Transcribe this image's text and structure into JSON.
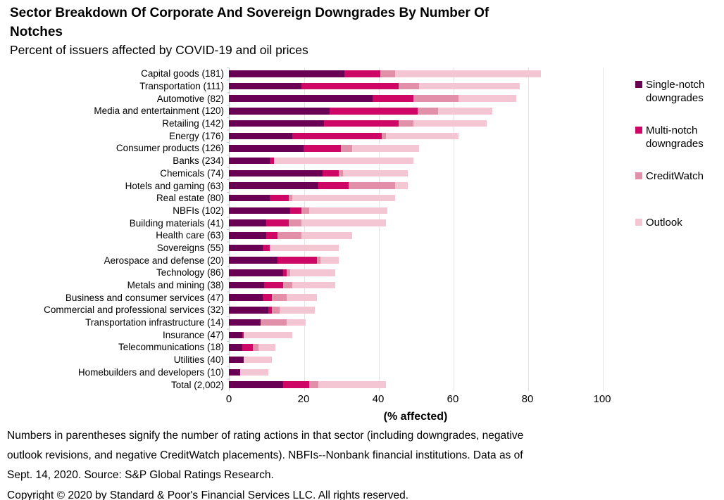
{
  "header": {
    "title_line1": "Sector Breakdown Of Corporate And Sovereign Downgrades By Number Of",
    "title_line2": "Notches",
    "subtitle": "Percent of issuers affected by COVID-19 and oil prices"
  },
  "chart_data": {
    "type": "bar",
    "orientation": "horizontal",
    "stacked": true,
    "grid": true,
    "legend_position": "right",
    "xlabel": "(% affected)",
    "xlim": [
      0,
      100
    ],
    "xticks": [
      0,
      20,
      40,
      60,
      80,
      100
    ],
    "series": [
      {
        "name": "Single-notch downgrades",
        "color": "#6A0054"
      },
      {
        "name": "Multi-notch downgrades",
        "color": "#CE0767"
      },
      {
        "name": "CreditWatch",
        "color": "#E28FA9"
      },
      {
        "name": "Outlook",
        "color": "#F4C6D4"
      }
    ],
    "rows": [
      {
        "category": "Capital goods (181)",
        "values": [
          31,
          9.5,
          4,
          39
        ]
      },
      {
        "category": "Transportation (111)",
        "values": [
          19.5,
          26,
          5.5,
          27
        ]
      },
      {
        "category": "Automotive (82)",
        "values": [
          38.5,
          11,
          12,
          15.5
        ]
      },
      {
        "category": "Media and entertainment (120)",
        "values": [
          27,
          23.5,
          5.5,
          14.5
        ]
      },
      {
        "category": "Retailing (142)",
        "values": [
          25.5,
          20,
          4,
          19.5
        ]
      },
      {
        "category": "Energy (176)",
        "values": [
          17,
          24,
          1,
          19.5
        ]
      },
      {
        "category": "Consumer products (126)",
        "values": [
          20,
          10,
          3,
          18
        ]
      },
      {
        "category": "Banks (234)",
        "values": [
          11,
          1,
          0,
          37.5
        ]
      },
      {
        "category": "Chemicals (74)",
        "values": [
          25,
          4.5,
          1,
          17.5
        ]
      },
      {
        "category": "Hotels and gaming (63)",
        "values": [
          24,
          8,
          12.5,
          3.5
        ]
      },
      {
        "category": "Real estate (80)",
        "values": [
          11,
          5,
          1,
          27.5
        ]
      },
      {
        "category": "NBFIs (102)",
        "values": [
          16.5,
          3,
          2,
          21
        ]
      },
      {
        "category": "Building materials (41)",
        "values": [
          10,
          6,
          3.5,
          22.5
        ]
      },
      {
        "category": "Health care (63)",
        "values": [
          10,
          3,
          6.5,
          13.5
        ]
      },
      {
        "category": "Sovereigns (55)",
        "values": [
          9,
          2,
          0,
          18.5
        ]
      },
      {
        "category": "Aerospace and defense (20)",
        "values": [
          13,
          10.5,
          1,
          5
        ]
      },
      {
        "category": "Technology (86)",
        "values": [
          14.5,
          1,
          1,
          12
        ]
      },
      {
        "category": "Metals and mining (38)",
        "values": [
          9.5,
          5,
          2.5,
          11.5
        ]
      },
      {
        "category": "Business and consumer services (47)",
        "values": [
          9,
          2.5,
          4,
          8
        ]
      },
      {
        "category": "Commercial and professional services (32)",
        "values": [
          10.5,
          1,
          2,
          9.5
        ]
      },
      {
        "category": "Transportation infrastructure (14)",
        "values": [
          8.5,
          0,
          7,
          5
        ]
      },
      {
        "category": "Insurance (47)",
        "values": [
          3.5,
          0.5,
          0,
          13
        ]
      },
      {
        "category": "Telecommunications (18)",
        "values": [
          3.5,
          3,
          1.5,
          4.5
        ]
      },
      {
        "category": "Utilities (40)",
        "values": [
          4,
          0,
          0,
          7.5
        ]
      },
      {
        "category": "Homebuilders and developers (10)",
        "values": [
          3,
          0,
          0,
          7.5
        ]
      },
      {
        "category": "Total (2,002)",
        "values": [
          14.5,
          7,
          2.5,
          18
        ]
      }
    ]
  },
  "footnote": {
    "lines": [
      "Numbers in parentheses signify the number of rating actions in that sector (including downgrades, negative",
      "outlook revisions, and negative CreditWatch placements). NBFIs--Nonbank financial institutions. Data as of",
      "Sept. 14, 2020. Source: S&P Global Ratings Research.",
      "Copyright © 2020 by Standard & Poor's Financial Services LLC. All rights reserved."
    ]
  }
}
